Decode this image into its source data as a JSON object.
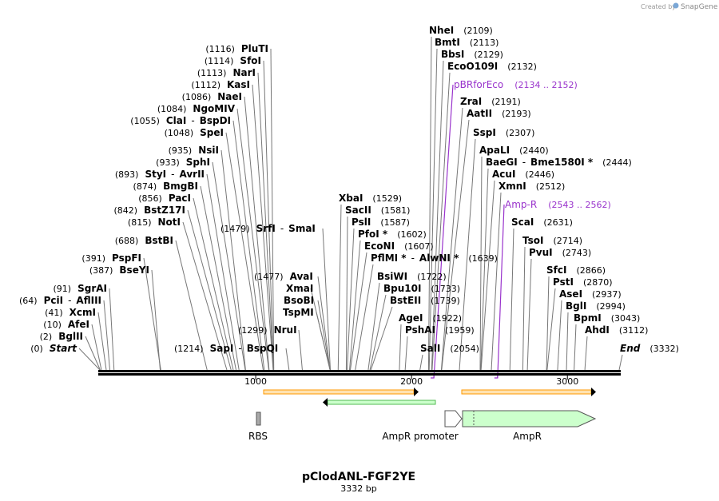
{
  "watermark": {
    "prefix": "Created by",
    "brand": "SnapGene"
  },
  "title": "pClodANL-FGF2YE",
  "subtitle": "3332 bp",
  "colors": {
    "primer": "#9933cc",
    "orf_fill": "#ccffcc",
    "orf_stroke": "#00aa00",
    "arrow_orange": "#ff9900",
    "arrow_green": "#55bb55"
  },
  "axis": {
    "ticks": [
      {
        "value": 1000,
        "label": "1000"
      },
      {
        "value": 2000,
        "label": "2000"
      },
      {
        "value": 3000,
        "label": "3000"
      }
    ]
  },
  "sites_left": [
    {
      "pos": "(0)",
      "name": "Start",
      "italic": true,
      "loc": 0
    },
    {
      "pos": "(2)",
      "name": "BglII",
      "loc": 2
    },
    {
      "pos": "(10)",
      "name": "AfeI",
      "loc": 10
    },
    {
      "pos": "(41)",
      "name": "XcmI",
      "loc": 41
    },
    {
      "pos": "(64)",
      "name": "PciI",
      "sep": "-",
      "name2": "AflIII",
      "loc": 64
    },
    {
      "pos": "(91)",
      "name": "SgrAI",
      "loc": 91
    },
    {
      "pos": "(387)",
      "name": "BseYI",
      "loc": 387
    },
    {
      "pos": "(391)",
      "name": "PspFI",
      "loc": 391
    },
    {
      "pos": "(688)",
      "name": "BstBI",
      "loc": 688
    },
    {
      "pos": "(815)",
      "name": "NotI",
      "loc": 815
    },
    {
      "pos": "(842)",
      "name": "BstZ17I",
      "loc": 842
    },
    {
      "pos": "(856)",
      "name": "PacI",
      "loc": 856
    },
    {
      "pos": "(874)",
      "name": "BmgBI",
      "loc": 874
    },
    {
      "pos": "(893)",
      "name": "StyI",
      "sep": "-",
      "name2": "AvrII",
      "loc": 893
    },
    {
      "pos": "(933)",
      "name": "SphI",
      "loc": 933
    },
    {
      "pos": "(935)",
      "name": "NsiI",
      "loc": 935
    },
    {
      "pos": "(1048)",
      "name": "SpeI",
      "loc": 1048
    },
    {
      "pos": "(1055)",
      "name": "ClaI",
      "sep": "-",
      "name2": "BspDI",
      "loc": 1055
    },
    {
      "pos": "(1084)",
      "name": "NgoMIV",
      "loc": 1084
    },
    {
      "pos": "(1086)",
      "name": "NaeI",
      "loc": 1086
    },
    {
      "pos": "(1112)",
      "name": "KasI",
      "loc": 1112
    },
    {
      "pos": "(1113)",
      "name": "NarI",
      "loc": 1113
    },
    {
      "pos": "(1114)",
      "name": "SfoI",
      "loc": 1114
    },
    {
      "pos": "(1116)",
      "name": "PluTI",
      "loc": 1116
    }
  ],
  "sites_middle": [
    {
      "pos": "(1214)",
      "name": "SapI",
      "sep": "-",
      "name2": "BspQI",
      "loc": 1214
    },
    {
      "pos": "(1299)",
      "name": "NruI",
      "loc": 1299
    },
    {
      "pos": "(1477)",
      "name": "AvaI",
      "loc": 1477
    },
    {
      "name": "XmaI",
      "loc": 1477
    },
    {
      "name": "BsoBI",
      "loc": 1477
    },
    {
      "name": "TspMI",
      "loc": 1477
    },
    {
      "pos": "(1479)",
      "name": "SrfI",
      "sep": "-",
      "name2": "SmaI",
      "loc": 1479
    }
  ],
  "sites_right": [
    {
      "name": "XbaI",
      "pos": "(1529)",
      "loc": 1529
    },
    {
      "name": "SacII",
      "pos": "(1581)",
      "loc": 1581
    },
    {
      "name": "PslI",
      "pos": "(1587)",
      "loc": 1587
    },
    {
      "name": "PfoI *",
      "pos": "(1602)",
      "loc": 1602
    },
    {
      "name": "EcoNI",
      "pos": "(1607)",
      "loc": 1607
    },
    {
      "name": "PflMI *",
      "sep": "-",
      "name2": "AlwNI *",
      "pos": "(1639)",
      "loc": 1639
    },
    {
      "name": "BsiWI",
      "pos": "(1722)",
      "loc": 1722
    },
    {
      "name": "Bpu10I",
      "pos": "(1733)",
      "loc": 1733
    },
    {
      "name": "BstEII",
      "pos": "(1739)",
      "loc": 1739
    },
    {
      "name": "AgeI",
      "pos": "(1922)",
      "loc": 1922
    },
    {
      "name": "PshAI",
      "pos": "(1959)",
      "loc": 1959
    },
    {
      "name": "SalI",
      "pos": "(2054)",
      "loc": 2054
    },
    {
      "name": "NheI",
      "pos": "(2109)",
      "loc": 2109
    },
    {
      "name": "BmtI",
      "pos": "(2113)",
      "loc": 2113
    },
    {
      "name": "BbsI",
      "pos": "(2129)",
      "loc": 2129
    },
    {
      "name": "EcoO109I",
      "pos": "(2132)",
      "loc": 2132
    },
    {
      "name": "ZraI",
      "pos": "(2191)",
      "loc": 2191
    },
    {
      "name": "AatII",
      "pos": "(2193)",
      "loc": 2193
    },
    {
      "name": "SspI",
      "pos": "(2307)",
      "loc": 2307
    },
    {
      "name": "ApaLI",
      "pos": "(2440)",
      "loc": 2440
    },
    {
      "name": "BaeGI",
      "sep": "-",
      "name2": "Bme1580I *",
      "pos": "(2444)",
      "loc": 2444
    },
    {
      "name": "AcuI",
      "pos": "(2446)",
      "loc": 2446
    },
    {
      "name": "XmnI",
      "pos": "(2512)",
      "loc": 2512
    },
    {
      "name": "ScaI",
      "pos": "(2631)",
      "loc": 2631
    },
    {
      "name": "TsoI",
      "pos": "(2714)",
      "loc": 2714
    },
    {
      "name": "PvuI",
      "pos": "(2743)",
      "loc": 2743
    },
    {
      "name": "SfcI",
      "pos": "(2866)",
      "loc": 2866
    },
    {
      "name": "PstI",
      "pos": "(2870)",
      "loc": 2870
    },
    {
      "name": "AseI",
      "pos": "(2937)",
      "loc": 2937
    },
    {
      "name": "BglI",
      "pos": "(2994)",
      "loc": 2994
    },
    {
      "name": "BpmI",
      "pos": "(3043)",
      "loc": 3043
    },
    {
      "name": "AhdI",
      "pos": "(3112)",
      "loc": 3112
    },
    {
      "name": "End",
      "italic": true,
      "pos": "(3332)",
      "loc": 3332
    }
  ],
  "primers": [
    {
      "name": "pBRforEco",
      "range": "(2134 .. 2152)",
      "loc": 2143
    },
    {
      "name": "Amp-R",
      "range": "(2543 .. 2562)",
      "loc": 2552
    }
  ],
  "features": [
    {
      "name": "RBS",
      "kind": "box"
    },
    {
      "name": "AmpR promoter",
      "kind": "promoter"
    },
    {
      "name": "AmpR",
      "kind": "orf"
    }
  ]
}
